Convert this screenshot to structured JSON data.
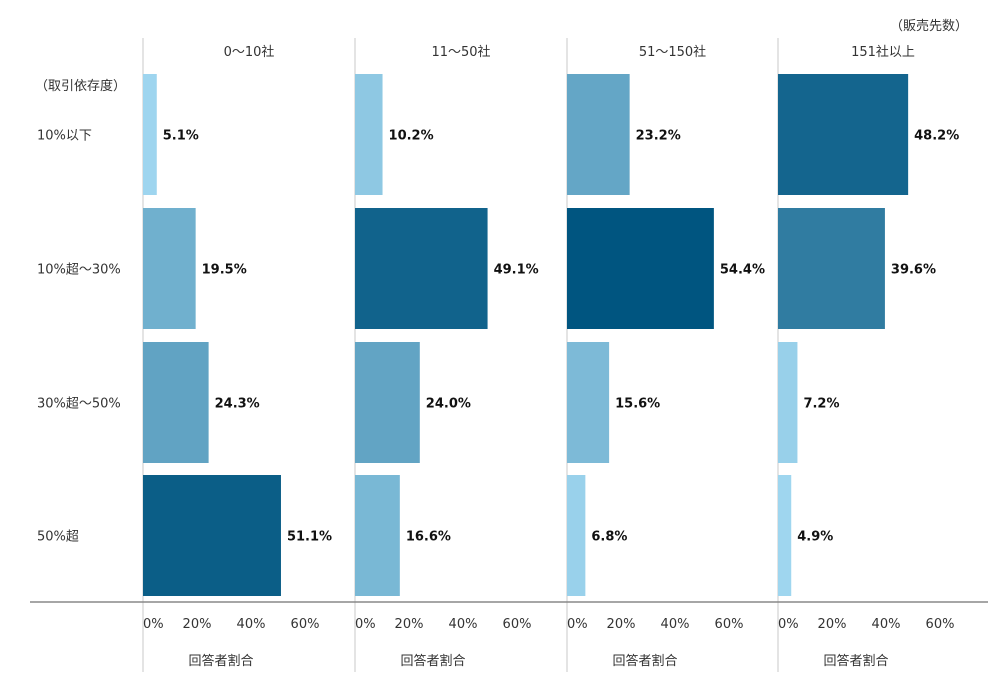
{
  "chart_data": {
    "type": "bar",
    "orientation": "horizontal",
    "unit_note": "（販売先数）",
    "y_axis_title": "（取引依存度）",
    "categories": [
      "10%以下",
      "10%超～30%",
      "30%超～50%",
      "50%超"
    ],
    "panels": [
      {
        "header": "0～10社",
        "values": [
          5.1,
          19.5,
          24.3,
          51.1
        ],
        "value_labels": [
          "5.1%",
          "19.5%",
          "24.3%",
          "51.1%"
        ]
      },
      {
        "header": "11～50社",
        "values": [
          10.2,
          49.1,
          24.0,
          16.6
        ],
        "value_labels": [
          "10.2%",
          "49.1%",
          "24.0%",
          "16.6%"
        ]
      },
      {
        "header": "51～150社",
        "values": [
          23.2,
          54.4,
          15.6,
          6.8
        ],
        "value_labels": [
          "23.2%",
          "54.4%",
          "15.6%",
          "6.8%"
        ]
      },
      {
        "header": "151社以上",
        "values": [
          48.2,
          39.6,
          7.2,
          4.9
        ],
        "value_labels": [
          "48.2%",
          "39.6%",
          "7.2%",
          "4.9%"
        ]
      }
    ],
    "xlabel": "回答者割合",
    "xticks": [
      0,
      20,
      40,
      60
    ],
    "xtick_labels": [
      "0%",
      "20%",
      "40%",
      "60%"
    ],
    "xlim": [
      0,
      60
    ],
    "grid": false,
    "color_scale": {
      "low": "#9fd6ef",
      "high": "#005580"
    }
  }
}
